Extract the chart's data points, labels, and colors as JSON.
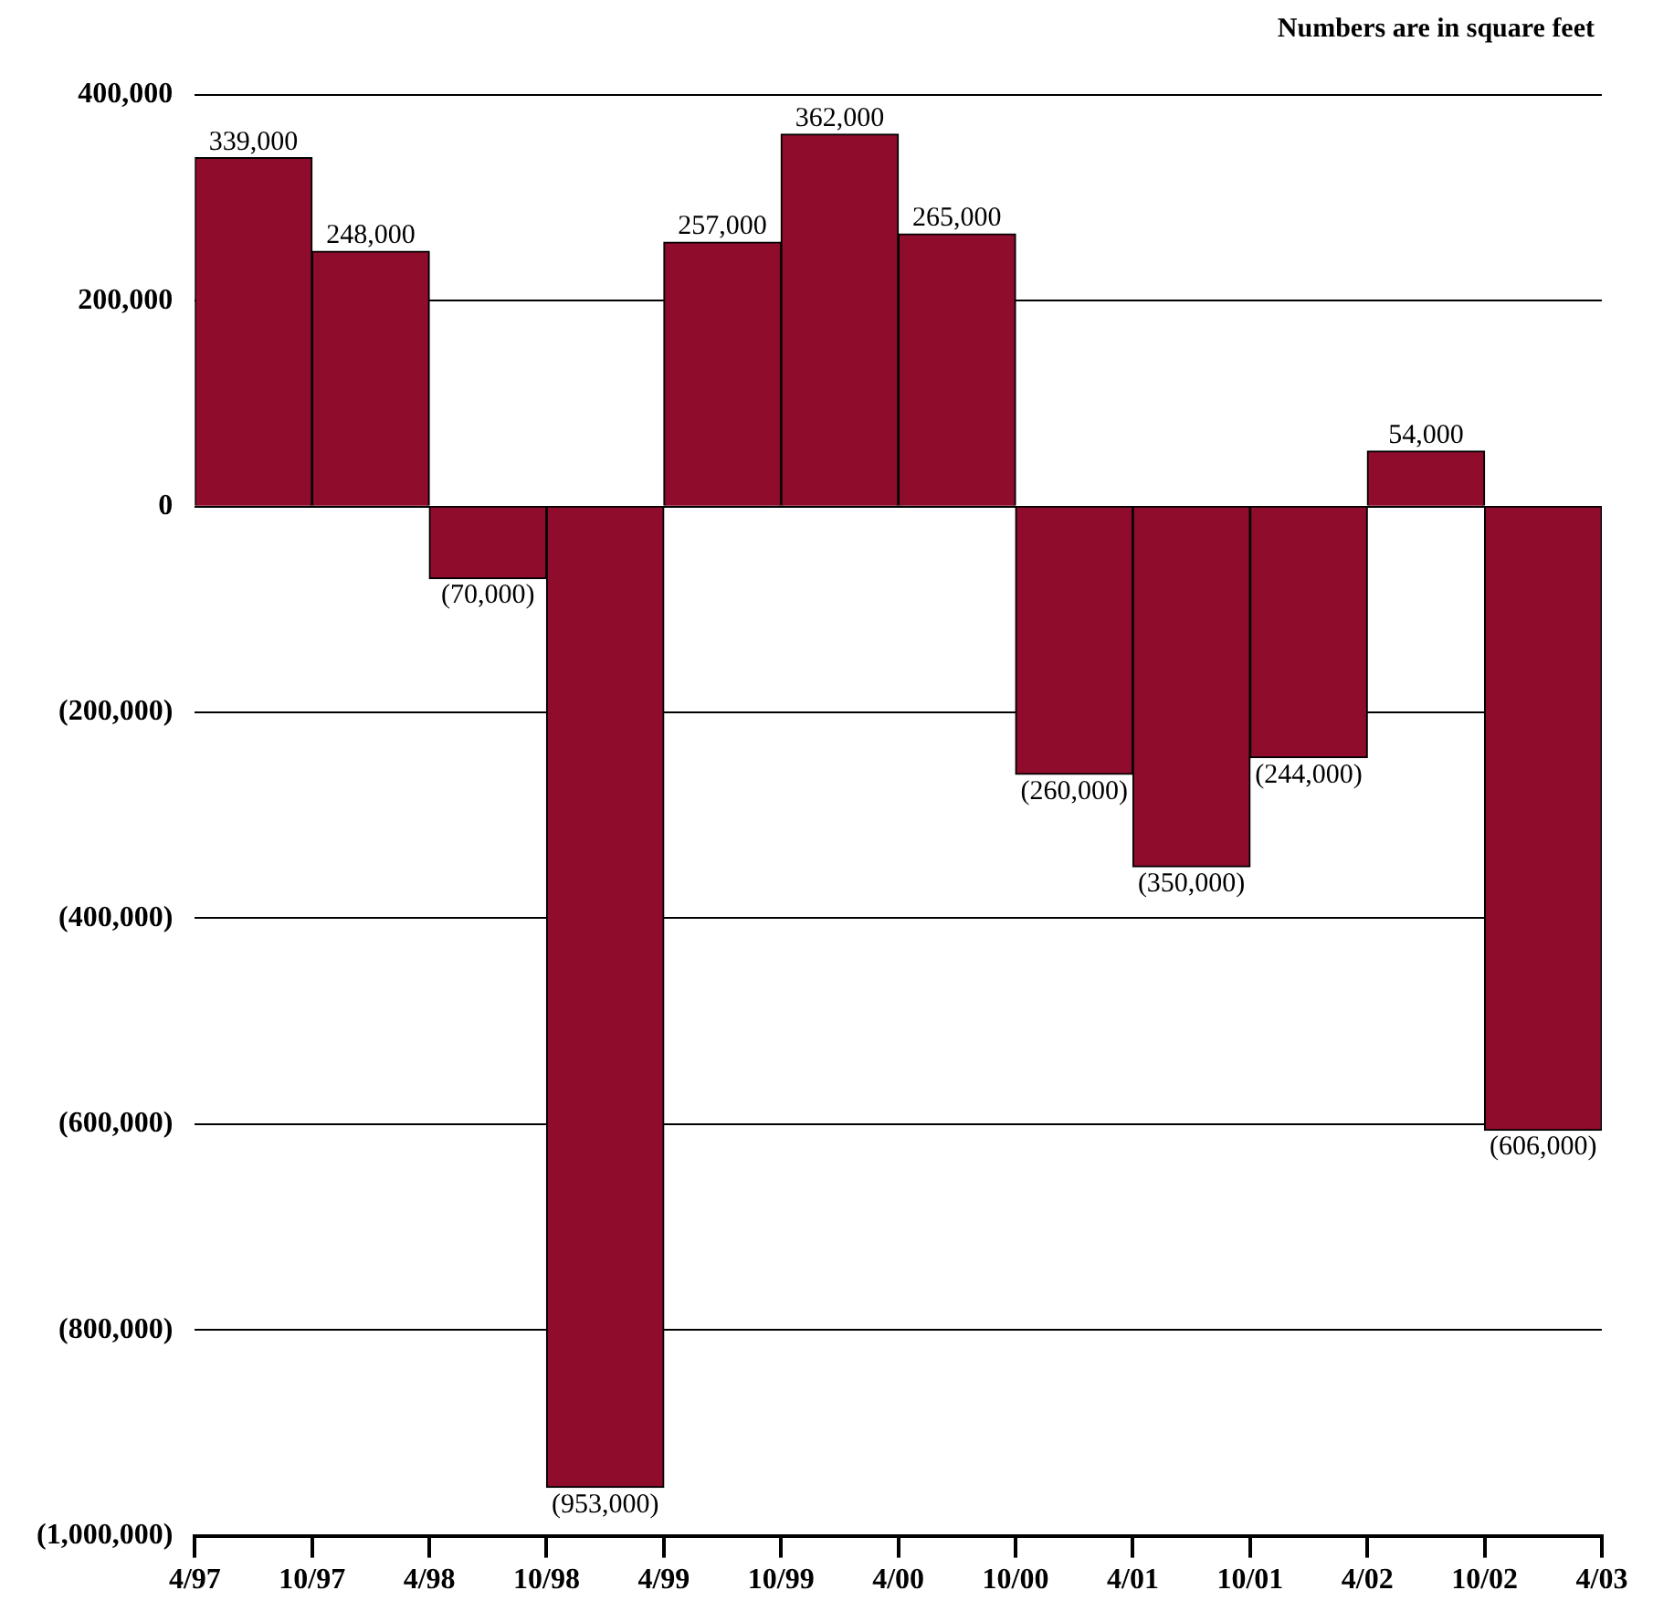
{
  "chart_data": {
    "type": "bar",
    "annotations": [
      "Numbers are in square feet"
    ],
    "x": [
      "1997-07",
      "1998-01",
      "1998-07",
      "1999-01",
      "1999-07",
      "2000-01",
      "2000-07",
      "2001-01",
      "2001-07",
      "2002-01",
      "2002-07",
      "2003-01"
    ],
    "values": [
      339000,
      248000,
      -70000,
      -953000,
      257000,
      362000,
      265000,
      -260000,
      -350000,
      -244000,
      54000,
      -606000
    ],
    "value_labels": [
      "339,000",
      "248,000",
      "(70,000)",
      "(953,000)",
      "257,000",
      "362,000",
      "265,000",
      "(260,000)",
      "(350,000)",
      "(244,000)",
      "54,000",
      "(606,000)"
    ],
    "color": "#8f0c2c",
    "xlim": [
      "1997-04",
      "2003-04"
    ],
    "xticks": [
      {
        "value": "1997-04",
        "label": "4/97"
      },
      {
        "value": "1997-10",
        "label": "10/97"
      },
      {
        "value": "1998-04",
        "label": "4/98"
      },
      {
        "value": "1998-10",
        "label": "10/98"
      },
      {
        "value": "1999-04",
        "label": "4/99"
      },
      {
        "value": "1999-10",
        "label": "10/99"
      },
      {
        "value": "2000-04",
        "label": "4/00"
      },
      {
        "value": "2000-10",
        "label": "10/00"
      },
      {
        "value": "2001-04",
        "label": "4/01"
      },
      {
        "value": "2001-10",
        "label": "10/01"
      },
      {
        "value": "2002-04",
        "label": "4/02"
      },
      {
        "value": "2002-10",
        "label": "10/02"
      },
      {
        "value": "2003-04",
        "label": "4/03"
      }
    ],
    "ylim": [
      -1000000,
      400000
    ],
    "yticks": [
      {
        "value": 400000,
        "label": "400,000"
      },
      {
        "value": 200000,
        "label": "200,000"
      },
      {
        "value": 0,
        "label": "0"
      },
      {
        "value": -200000,
        "label": "(200,000)"
      },
      {
        "value": -400000,
        "label": "(400,000)"
      },
      {
        "value": -600000,
        "label": "(600,000)"
      },
      {
        "value": -800000,
        "label": "(800,000)"
      },
      {
        "value": -1000000,
        "label": "(1,000,000)"
      }
    ],
    "grid": "y",
    "legend": false
  }
}
